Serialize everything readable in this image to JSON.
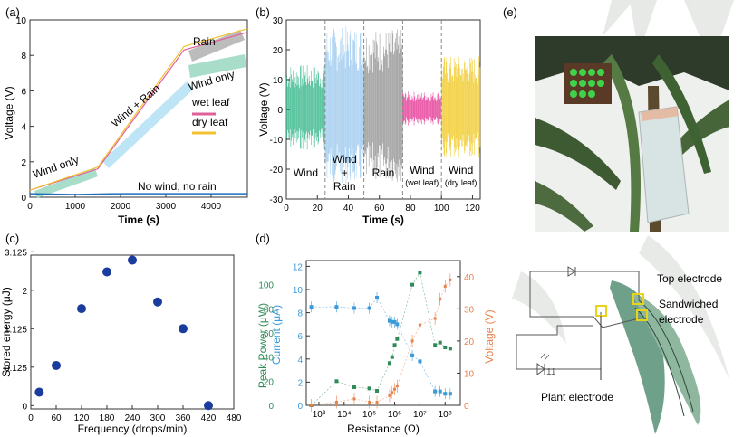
{
  "panels": {
    "a": {
      "label": "(a)"
    },
    "b": {
      "label": "(b)"
    },
    "c": {
      "label": "(c)"
    },
    "d": {
      "label": "(d)"
    },
    "e": {
      "label": "(e)"
    }
  },
  "chart_data": [
    {
      "id": "a",
      "type": "line",
      "xlabel": "Time (s)",
      "ylabel": "Voltage (V)",
      "xlim": [
        0,
        4800
      ],
      "ylim": [
        0,
        10
      ],
      "xticks": [
        0,
        1000,
        2000,
        3000,
        4000
      ],
      "yticks": [
        0,
        2,
        4,
        6,
        8,
        10
      ],
      "series": [
        {
          "name": "wet leaf",
          "color": "#e0609a",
          "x": [
            0,
            1500,
            3400,
            4800
          ],
          "y": [
            0.4,
            1.6,
            8.3,
            9.3
          ]
        },
        {
          "name": "dry leaf",
          "color": "#f2c230",
          "x": [
            0,
            1500,
            3400,
            4800
          ],
          "y": [
            0.4,
            1.7,
            8.5,
            9.5
          ]
        },
        {
          "name": "No wind, no rain",
          "color": "#1f6fbf",
          "x": [
            0,
            1000,
            2000,
            3000,
            4000,
            4800
          ],
          "y": [
            0.2,
            0.15,
            0.2,
            0.2,
            0.2,
            0.2
          ]
        }
      ],
      "annotations": [
        "Wind only",
        "Wind + Rain",
        "Rain",
        "Wind only",
        "No wind, no rain"
      ],
      "legend": [
        {
          "label": "wet leaf",
          "color": "#e0609a"
        },
        {
          "label": "dry leaf",
          "color": "#f2c230"
        }
      ]
    },
    {
      "id": "b",
      "type": "line",
      "xlabel": "Time (s)",
      "ylabel": "Voltage (V)",
      "xlim": [
        0,
        125
      ],
      "ylim": [
        -30,
        30
      ],
      "xticks": [
        0,
        20,
        40,
        60,
        80,
        100,
        120
      ],
      "yticks": [
        -30,
        -20,
        -10,
        0,
        10,
        20,
        30
      ],
      "segments": [
        {
          "name": "Wind",
          "from": 0,
          "to": 25,
          "amplitude": 15,
          "color": "#4dbf98"
        },
        {
          "name": "Wind + Rain",
          "from": 25,
          "to": 50,
          "amplitude": 28,
          "color": "#a8d0f0"
        },
        {
          "name": "Rain",
          "from": 50,
          "to": 75,
          "amplitude": 27,
          "color": "#a0a0a0"
        },
        {
          "name": "Wind (wet leaf)",
          "from": 75,
          "to": 100,
          "amplitude": 6,
          "color": "#e84fa0"
        },
        {
          "name": "Wind (dry leaf)",
          "from": 100,
          "to": 125,
          "amplitude": 18,
          "color": "#f2d040"
        }
      ],
      "region_labels": [
        {
          "lines": [
            "Wind"
          ]
        },
        {
          "lines": [
            "Wind",
            "+",
            "Rain"
          ]
        },
        {
          "lines": [
            "Rain"
          ]
        },
        {
          "lines": [
            "Wind",
            "(wet leaf)"
          ]
        },
        {
          "lines": [
            "Wind",
            "(dry leaf)"
          ]
        }
      ]
    },
    {
      "id": "c",
      "type": "scatter",
      "xlabel": "Frequency (drops/min)",
      "ylabel": "Stored energy (μJ)",
      "xlim": [
        0,
        480
      ],
      "xticks": [
        0,
        60,
        120,
        180,
        240,
        300,
        360,
        420,
        480
      ],
      "yticks": [
        "0",
        "0.125",
        "1.125",
        "2",
        "3.125"
      ],
      "x": [
        20,
        60,
        120,
        180,
        240,
        300,
        360,
        420
      ],
      "y_level": [
        0.5,
        1.3,
        3.0,
        4.1,
        4.45,
        3.2,
        2.4,
        0.1
      ],
      "color": "#1a3c9c"
    },
    {
      "id": "d",
      "type": "scatter",
      "xlabel": "Resistance (Ω)",
      "ylabel_left_power": "Peak Power (μW)",
      "ylabel_left_current": "Current (μA)",
      "ylabel_right": "Voltage (V)",
      "power_ticks": [
        0,
        20,
        40,
        60,
        80,
        100
      ],
      "current_ticks": [
        0,
        2,
        4,
        6,
        8,
        10,
        12
      ],
      "voltage_ticks": [
        0,
        10,
        20,
        30,
        40
      ],
      "xticks": [
        "10³",
        "10⁴",
        "10⁵",
        "10⁶",
        "10⁷",
        "10⁸"
      ],
      "x_log": [
        2.7,
        3.7,
        4.4,
        5.0,
        5.3,
        5.8,
        5.9,
        6.0,
        6.1,
        6.7,
        7.0,
        7.6,
        7.8,
        8.0,
        8.2
      ],
      "current": [
        8.5,
        8.5,
        8.4,
        8.4,
        9.3,
        7.3,
        7.2,
        7.2,
        7.0,
        4.3,
        3.8,
        1.2,
        1.2,
        1.0,
        1.0
      ],
      "power": [
        0,
        20,
        15,
        14,
        12,
        35,
        40,
        50,
        55,
        100,
        110,
        50,
        52,
        48,
        47
      ],
      "voltage": [
        0,
        1,
        2,
        1,
        1,
        3,
        4,
        5,
        6,
        20,
        25,
        27,
        33,
        37,
        39
      ],
      "colors": {
        "power": "#2e8b57",
        "current": "#3a9ad9",
        "voltage": "#e8814c"
      }
    }
  ],
  "diagram_e": {
    "labels": [
      "Top electrode",
      "Sandwiched",
      "electrode",
      "Plant electrode"
    ],
    "colors": {
      "leaf": "#6fa089",
      "marker": "#e9d21a",
      "wire": "#555555"
    }
  }
}
